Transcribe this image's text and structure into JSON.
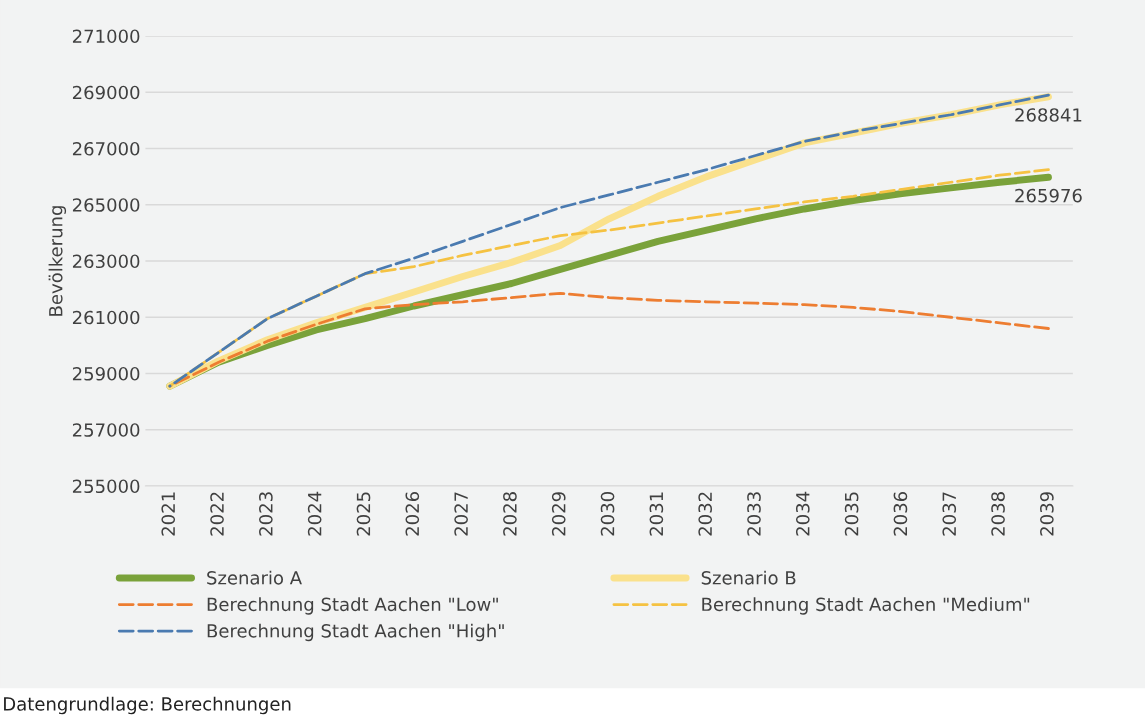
{
  "chart_data": {
    "type": "line",
    "ylabel": "Bevölkerung",
    "categories": [
      "2021",
      "2022",
      "2023",
      "2024",
      "2025",
      "2026",
      "2027",
      "2028",
      "2029",
      "2030",
      "2031",
      "2032",
      "2033",
      "2034",
      "2035",
      "2036",
      "2037",
      "2038",
      "2039"
    ],
    "series": [
      {
        "name": "Szenario A",
        "color": "#7aa23a",
        "line_style": "solid",
        "values": [
          258550,
          259400,
          260000,
          260550,
          260950,
          261400,
          261800,
          262200,
          262700,
          263200,
          263700,
          264100,
          264500,
          264850,
          265150,
          265400,
          265600,
          265800,
          265976
        ]
      },
      {
        "name": "Szenario B",
        "color": "#fae18c",
        "line_style": "solid",
        "values": [
          258550,
          259450,
          260200,
          260800,
          261350,
          261900,
          262450,
          262950,
          263550,
          264500,
          265300,
          266000,
          266600,
          267200,
          267550,
          267900,
          268200,
          268550,
          268841
        ]
      },
      {
        "name": "Berechnung Stadt Aachen \"Low\"",
        "color": "#ed7d31",
        "line_style": "dashed",
        "values": [
          258550,
          259400,
          260150,
          260750,
          261300,
          261450,
          261550,
          261700,
          261850,
          261700,
          261600,
          261550,
          261500,
          261450,
          261350,
          261200,
          261000,
          260800,
          260600
        ]
      },
      {
        "name": "Berechnung Stadt Aachen \"Medium\"",
        "color": "#f5c242",
        "line_style": "dashed",
        "values": [
          258550,
          259750,
          260950,
          261750,
          262550,
          262800,
          263200,
          263550,
          263900,
          264100,
          264350,
          264600,
          264850,
          265100,
          265300,
          265550,
          265800,
          266050,
          266250
        ]
      },
      {
        "name": "Berechnung Stadt Aachen \"High\"",
        "color": "#4a7ab0",
        "line_style": "dashed",
        "values": [
          258550,
          259750,
          260950,
          261750,
          262550,
          263100,
          263700,
          264300,
          264900,
          265350,
          265800,
          266250,
          266750,
          267250,
          267600,
          267900,
          268200,
          268550,
          268900
        ]
      }
    ],
    "ylim": [
      255000,
      271000
    ],
    "yticks": [
      255000,
      257000,
      259000,
      261000,
      263000,
      265000,
      267000,
      269000,
      271000
    ],
    "grid": "y",
    "legend": "bottom",
    "marker": "none",
    "annotations": [
      {
        "text": "268841",
        "x": "2039",
        "y": 268841
      },
      {
        "text": "265976",
        "x": "2039",
        "y": 265976
      },
      "Datengrundlage: Berechnungen"
    ]
  }
}
